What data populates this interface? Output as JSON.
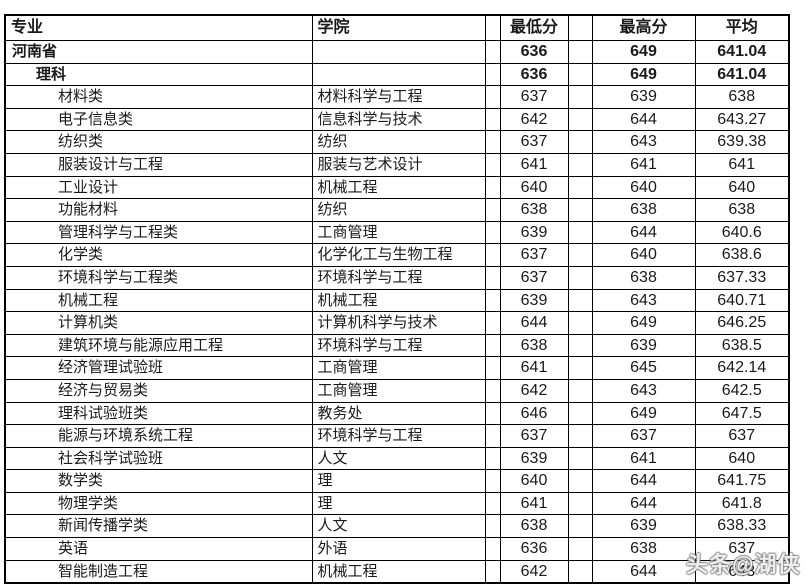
{
  "table": {
    "headers": {
      "major": "专业",
      "college": "学院",
      "min": "最低分",
      "max": "最高分",
      "avg": "平均"
    },
    "rows": [
      {
        "major": "河南省",
        "college": "",
        "min": "636",
        "max": "649",
        "avg": "641.04",
        "level": 0,
        "bold": true
      },
      {
        "major": "理科",
        "college": "",
        "min": "636",
        "max": "649",
        "avg": "641.04",
        "level": 1,
        "bold": true
      },
      {
        "major": "材料类",
        "college": "材料科学与工程",
        "min": "637",
        "max": "639",
        "avg": "638",
        "level": 2,
        "bold": false
      },
      {
        "major": "电子信息类",
        "college": "信息科学与技术",
        "min": "642",
        "max": "644",
        "avg": "643.27",
        "level": 2,
        "bold": false
      },
      {
        "major": "纺织类",
        "college": "纺织",
        "min": "637",
        "max": "643",
        "avg": "639.38",
        "level": 2,
        "bold": false
      },
      {
        "major": "服装设计与工程",
        "college": "服装与艺术设计",
        "min": "641",
        "max": "641",
        "avg": "641",
        "level": 2,
        "bold": false
      },
      {
        "major": "工业设计",
        "college": "机械工程",
        "min": "640",
        "max": "640",
        "avg": "640",
        "level": 2,
        "bold": false
      },
      {
        "major": "功能材料",
        "college": "纺织",
        "min": "638",
        "max": "638",
        "avg": "638",
        "level": 2,
        "bold": false
      },
      {
        "major": "管理科学与工程类",
        "college": "工商管理",
        "min": "639",
        "max": "644",
        "avg": "640.6",
        "level": 2,
        "bold": false
      },
      {
        "major": "化学类",
        "college": "化学化工与生物工程",
        "min": "637",
        "max": "640",
        "avg": "638.6",
        "level": 2,
        "bold": false
      },
      {
        "major": "环境科学与工程类",
        "college": "环境科学与工程",
        "min": "637",
        "max": "638",
        "avg": "637.33",
        "level": 2,
        "bold": false
      },
      {
        "major": "机械工程",
        "college": "机械工程",
        "min": "639",
        "max": "643",
        "avg": "640.71",
        "level": 2,
        "bold": false
      },
      {
        "major": "计算机类",
        "college": "计算机科学与技术",
        "min": "644",
        "max": "649",
        "avg": "646.25",
        "level": 2,
        "bold": false
      },
      {
        "major": "建筑环境与能源应用工程",
        "college": "环境科学与工程",
        "min": "638",
        "max": "639",
        "avg": "638.5",
        "level": 2,
        "bold": false
      },
      {
        "major": "经济管理试验班",
        "college": "工商管理",
        "min": "641",
        "max": "645",
        "avg": "642.14",
        "level": 2,
        "bold": false
      },
      {
        "major": "经济与贸易类",
        "college": "工商管理",
        "min": "642",
        "max": "643",
        "avg": "642.5",
        "level": 2,
        "bold": false
      },
      {
        "major": "理科试验班类",
        "college": "教务处",
        "min": "646",
        "max": "649",
        "avg": "647.5",
        "level": 2,
        "bold": false
      },
      {
        "major": "能源与环境系统工程",
        "college": "环境科学与工程",
        "min": "637",
        "max": "637",
        "avg": "637",
        "level": 2,
        "bold": false
      },
      {
        "major": "社会科学试验班",
        "college": "人文",
        "min": "639",
        "max": "641",
        "avg": "640",
        "level": 2,
        "bold": false
      },
      {
        "major": "数学类",
        "college": "理",
        "min": "640",
        "max": "644",
        "avg": "641.75",
        "level": 2,
        "bold": false
      },
      {
        "major": "物理学类",
        "college": "理",
        "min": "641",
        "max": "644",
        "avg": "641.8",
        "level": 2,
        "bold": false
      },
      {
        "major": "新闻传播学类",
        "college": "人文",
        "min": "638",
        "max": "639",
        "avg": "638.33",
        "level": 2,
        "bold": false
      },
      {
        "major": "英语",
        "college": "外语",
        "min": "636",
        "max": "638",
        "avg": "637",
        "level": 2,
        "bold": false
      },
      {
        "major": "智能制造工程",
        "college": "机械工程",
        "min": "642",
        "max": "644",
        "avg": "643",
        "level": 2,
        "bold": false
      }
    ]
  },
  "watermark": {
    "text": "头条@湖侠"
  }
}
